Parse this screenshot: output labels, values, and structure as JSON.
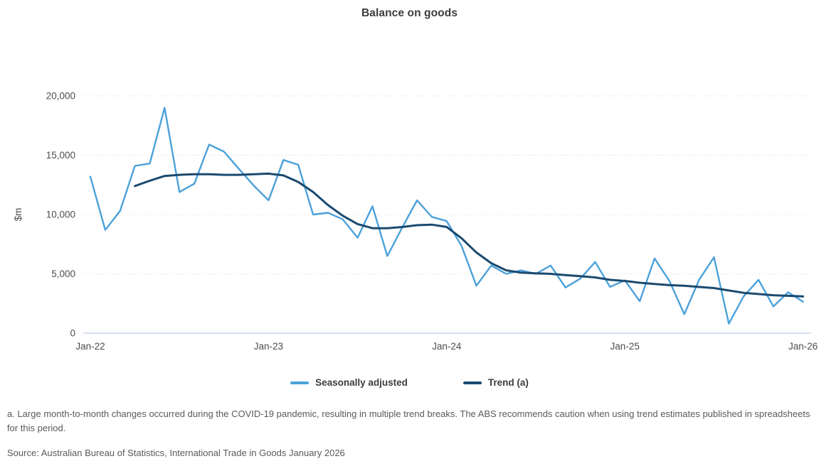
{
  "chart": {
    "title": "Balance on goods",
    "footnote": "a. Large month-to-month changes occurred during the COVID-19 pandemic, resulting in multiple trend breaks. The ABS recommends caution when using trend estimates published in spreadsheets for this period.",
    "source": "Source: Australian Bureau of Statistics, International Trade in Goods January 2026"
  },
  "chart_data": {
    "type": "line",
    "title": "Balance on goods",
    "xlabel": "",
    "ylabel": "$m",
    "ylim": [
      0,
      20000
    ],
    "y_ticks": [
      0,
      5000,
      10000,
      15000,
      20000
    ],
    "y_tick_labels": [
      "0",
      "5,000",
      "10,000",
      "15,000",
      "20,000"
    ],
    "x_tick_positions": [
      0,
      12,
      24,
      36,
      48
    ],
    "x_tick_labels": [
      "Jan-22",
      "Jan-23",
      "Jan-24",
      "Jan-25",
      "Jan-26"
    ],
    "grid": "horizontal-dotted",
    "legend_position": "bottom",
    "x": [
      "Jan-22",
      "Feb-22",
      "Mar-22",
      "Apr-22",
      "May-22",
      "Jun-22",
      "Jul-22",
      "Aug-22",
      "Sep-22",
      "Oct-22",
      "Nov-22",
      "Dec-22",
      "Jan-23",
      "Feb-23",
      "Mar-23",
      "Apr-23",
      "May-23",
      "Jun-23",
      "Jul-23",
      "Aug-23",
      "Sep-23",
      "Oct-23",
      "Nov-23",
      "Dec-23",
      "Jan-24",
      "Feb-24",
      "Mar-24",
      "Apr-24",
      "May-24",
      "Jun-24",
      "Jul-24",
      "Aug-24",
      "Sep-24",
      "Oct-24",
      "Nov-24",
      "Dec-24",
      "Jan-25",
      "Feb-25",
      "Mar-25",
      "Apr-25",
      "May-25",
      "Jun-25",
      "Jul-25",
      "Aug-25",
      "Sep-25",
      "Oct-25",
      "Nov-25",
      "Dec-25",
      "Jan-26"
    ],
    "series": [
      {
        "id": "seasonally-adjusted-line",
        "name": "Seasonally adjusted",
        "color": "#4BA1D9",
        "start_index": 0,
        "values": [
          13200,
          8700,
          10300,
          14100,
          14300,
          19000,
          11900,
          12600,
          15900,
          15300,
          13850,
          12450,
          11200,
          14600,
          14200,
          10000,
          10150,
          9600,
          8050,
          10700,
          6500,
          8900,
          11200,
          9800,
          9450,
          7350,
          4000,
          5700,
          5000,
          5300,
          5000,
          5700,
          3850,
          4600,
          6000,
          3900,
          4450,
          2700,
          6300,
          4400,
          1600,
          4500,
          6400,
          800,
          3100,
          4500,
          2250,
          3450,
          2650
        ]
      },
      {
        "id": "trend-line",
        "name": "Trend (a)",
        "color": "#1A4A70",
        "start_index": 3,
        "values": [
          12400,
          12850,
          13250,
          13350,
          13400,
          13400,
          13350,
          13350,
          13400,
          13450,
          13300,
          12750,
          11900,
          10800,
          9900,
          9200,
          8850,
          8850,
          8950,
          9100,
          9150,
          8950,
          8000,
          6800,
          5900,
          5300,
          5100,
          5050,
          5000,
          4900,
          4800,
          4700,
          4500,
          4400,
          4250,
          4150,
          4050,
          4000,
          3900,
          3800,
          3600,
          3400,
          3300,
          3200,
          3150,
          3100
        ]
      }
    ],
    "axis_colors": {
      "baseline": "#C5D5EE",
      "gridline": "#E0E0E0",
      "tick_text": "#4d4d4d"
    }
  }
}
